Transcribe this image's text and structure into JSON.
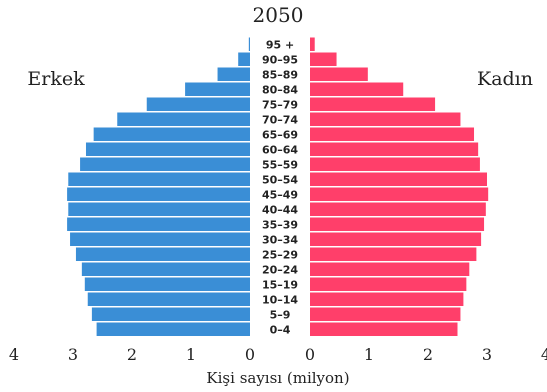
{
  "chart_data": {
    "type": "bar",
    "title": "2050",
    "xlabel": "Kişi sayısı (milyon)",
    "left_label": "Erkek",
    "right_label": "Kadın",
    "categories": [
      "95 +",
      "90–95",
      "85–89",
      "80–84",
      "75–79",
      "70–74",
      "65–69",
      "60–64",
      "55–59",
      "50–54",
      "45–49",
      "40–44",
      "35–39",
      "30–34",
      "25–29",
      "20–24",
      "15–19",
      "10–14",
      "5–9",
      "0–4"
    ],
    "series": [
      {
        "name": "Erkek",
        "color": "#3a8ed6",
        "values": [
          0.02,
          0.2,
          0.55,
          1.1,
          1.75,
          2.25,
          2.65,
          2.78,
          2.88,
          3.08,
          3.1,
          3.08,
          3.1,
          3.05,
          2.95,
          2.85,
          2.8,
          2.75,
          2.68,
          2.6
        ]
      },
      {
        "name": "Kadın",
        "color": "#ff3f6a",
        "values": [
          0.08,
          0.45,
          0.98,
          1.58,
          2.12,
          2.55,
          2.78,
          2.85,
          2.88,
          3.0,
          3.02,
          2.98,
          2.95,
          2.9,
          2.82,
          2.7,
          2.65,
          2.6,
          2.55,
          2.5
        ]
      }
    ],
    "xticks_left": [
      "4",
      "3",
      "2",
      "1",
      "0"
    ],
    "xticks_right": [
      "0",
      "1",
      "2",
      "3",
      "4"
    ],
    "xlim": [
      0,
      4
    ]
  }
}
